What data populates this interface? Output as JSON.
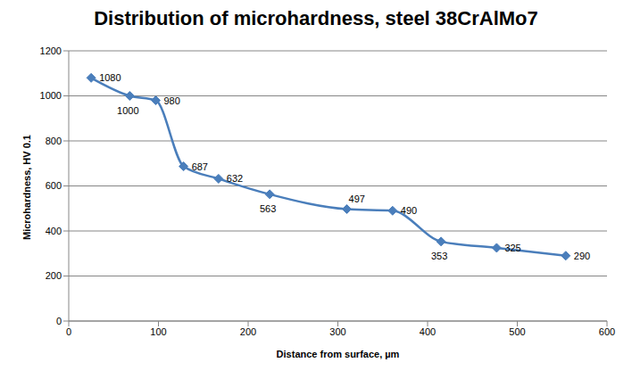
{
  "chart_data": {
    "type": "line",
    "title": "Distribution of microhardness, steel 38CrAlMo7",
    "x_label": "Distance from surface, µm",
    "y_label": "Microhardness, HV 0.1",
    "x": [
      25,
      68,
      97,
      128,
      167,
      224,
      310,
      361,
      415,
      477,
      554
    ],
    "values": [
      1080,
      1000,
      980,
      687,
      632,
      563,
      497,
      490,
      353,
      325,
      290
    ],
    "color": "#4a7ebb",
    "marker": "diamond",
    "line_style": "smooth",
    "data_labels": true,
    "xlim": [
      0,
      600
    ],
    "xticks": [
      0,
      100,
      200,
      300,
      400,
      500,
      600
    ],
    "ylim": [
      0,
      1200
    ],
    "yticks": [
      0,
      200,
      400,
      600,
      800,
      1000,
      1200
    ],
    "grid": true
  }
}
